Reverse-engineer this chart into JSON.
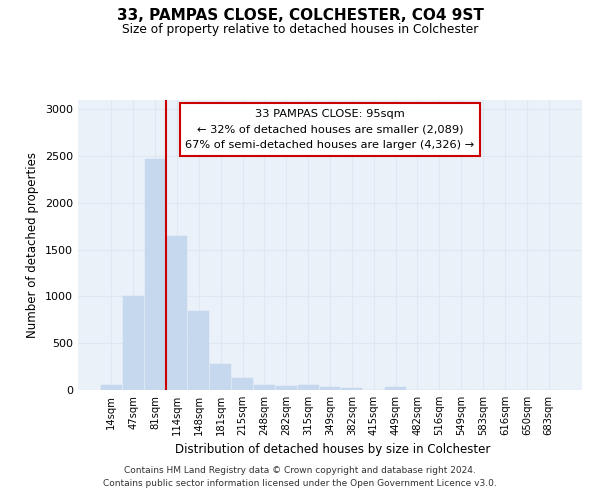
{
  "title": "33, PAMPAS CLOSE, COLCHESTER, CO4 9ST",
  "subtitle": "Size of property relative to detached houses in Colchester",
  "xlabel": "Distribution of detached houses by size in Colchester",
  "ylabel": "Number of detached properties",
  "categories": [
    "14sqm",
    "47sqm",
    "81sqm",
    "114sqm",
    "148sqm",
    "181sqm",
    "215sqm",
    "248sqm",
    "282sqm",
    "315sqm",
    "349sqm",
    "382sqm",
    "415sqm",
    "449sqm",
    "482sqm",
    "516sqm",
    "549sqm",
    "583sqm",
    "616sqm",
    "650sqm",
    "683sqm"
  ],
  "values": [
    55,
    1000,
    2470,
    1650,
    840,
    275,
    130,
    50,
    45,
    50,
    30,
    25,
    0,
    30,
    0,
    0,
    0,
    0,
    0,
    0,
    0
  ],
  "bar_color": "#c5d8ed",
  "bar_edge_color": "#c5d8ed",
  "annotation_line0": "33 PAMPAS CLOSE: 95sqm",
  "annotation_line1": "← 32% of detached houses are smaller (2,089)",
  "annotation_line2": "67% of semi-detached houses are larger (4,326) →",
  "annotation_box_color": "#cc0000",
  "vline_color": "#cc0000",
  "ylim": [
    0,
    3100
  ],
  "yticks": [
    0,
    500,
    1000,
    1500,
    2000,
    2500,
    3000
  ],
  "grid_color": "#dde8f0",
  "background_color": "#eaf1f8",
  "footer_line1": "Contains HM Land Registry data © Crown copyright and database right 2024.",
  "footer_line2": "Contains public sector information licensed under the Open Government Licence v3.0."
}
